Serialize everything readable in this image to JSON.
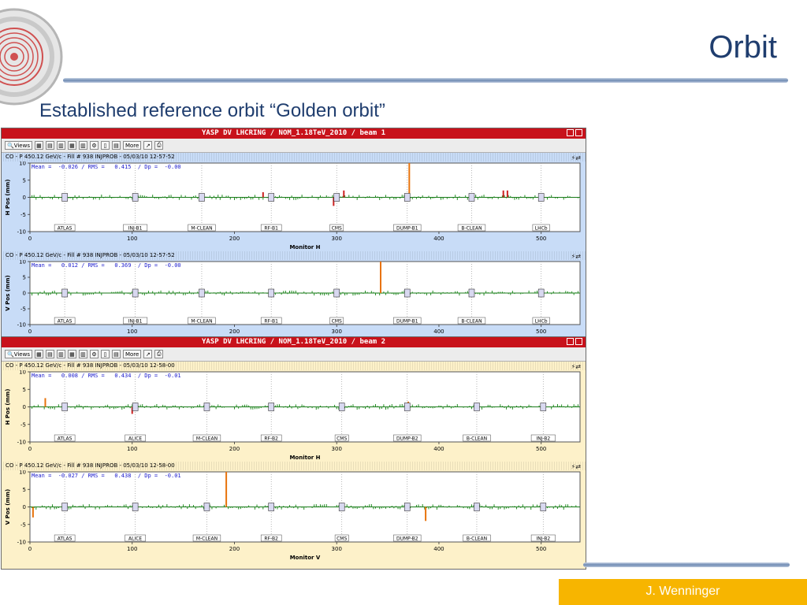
{
  "slide": {
    "title": "Orbit",
    "subtitle": "Established  reference orbit “Golden orbit”",
    "author": "J. Wenninger",
    "colors": {
      "title": "#1f3d6e",
      "footer": "#f7b500"
    }
  },
  "toolbar": {
    "views_label": "Views",
    "more_label": "More"
  },
  "windows": [
    {
      "title": "YASP DV LHCRING / NOM_1.18TeV_2010 / beam 1",
      "background": "#c8dcf7",
      "plot_bg": "#ffffff",
      "panels": [
        {
          "header": "CO - P 450.12 GeV/c - Fill # 938 INJPROB - 05/03/10 12-57-52",
          "stats": "Mean =  -0.026 / RMS =   0.415  / Dp =  -0.00",
          "chart_data": {
            "type": "bar",
            "ylabel": "H Pos (mm)",
            "xlabel": "Monitor H",
            "xlim": [
              0,
              538
            ],
            "ylim": [
              -10,
              10
            ],
            "x_ticks": [
              "0",
              "100",
              "200",
              "300",
              "400",
              "500"
            ],
            "y_ticks": [
              "10",
              "5",
              "0",
              "-5",
              "-10"
            ],
            "markers": [
              {
                "label": "ATLAS",
                "x": 34
              },
              {
                "label": "INJ-B1",
                "x": 103
              },
              {
                "label": "M-CLEAN",
                "x": 168
              },
              {
                "label": "RF-B1",
                "x": 236
              },
              {
                "label": "CMS",
                "x": 300
              },
              {
                "label": "DUMP-B1",
                "x": 369
              },
              {
                "label": "B-CLEAN",
                "x": 432
              },
              {
                "label": "LHCb",
                "x": 500
              }
            ],
            "highlights": [
              {
                "x": 297,
                "v": -2.5,
                "color": "#cc2222"
              },
              {
                "x": 307,
                "v": 2,
                "color": "#cc2222"
              },
              {
                "x": 371,
                "v": 10,
                "color": "#e8730c"
              },
              {
                "x": 228,
                "v": 1.5,
                "color": "#cc2222"
              },
              {
                "x": 463,
                "v": 2,
                "color": "#cc2222"
              },
              {
                "x": 467,
                "v": 2,
                "color": "#cc2222"
              }
            ]
          }
        },
        {
          "header": "CO - P 450.12 GeV/c - Fill # 938 INJPROB - 05/03/10 12-57-52",
          "stats": "Mean =   0.012 / RMS =   0.369  / Dp =  -0.00",
          "chart_data": {
            "type": "bar",
            "ylabel": "V Pos (mm)",
            "xlabel": "",
            "xlim": [
              0,
              538
            ],
            "ylim": [
              -10,
              10
            ],
            "x_ticks": [
              "0",
              "100",
              "200",
              "300",
              "400",
              "500"
            ],
            "y_ticks": [
              "10",
              "5",
              "0",
              "-5",
              "-10"
            ],
            "markers": [
              {
                "label": "ATLAS",
                "x": 34
              },
              {
                "label": "INJ-B1",
                "x": 103
              },
              {
                "label": "M-CLEAN",
                "x": 168
              },
              {
                "label": "RF-B1",
                "x": 236
              },
              {
                "label": "CMS",
                "x": 300
              },
              {
                "label": "DUMP-B1",
                "x": 369
              },
              {
                "label": "B-CLEAN",
                "x": 432
              },
              {
                "label": "LHCb",
                "x": 500
              }
            ],
            "highlights": [
              {
                "x": 343,
                "v": 10,
                "color": "#e8730c"
              }
            ]
          }
        }
      ]
    },
    {
      "title": "YASP DV LHCRING / NOM_1.18TeV_2010 / beam 2",
      "background": "#fdf1c9",
      "plot_bg": "#ffffff",
      "panels": [
        {
          "header": "CO - P 450.12 GeV/c - Fill # 938 INJPROB - 05/03/10 12-58-00",
          "stats": "Mean =   0.008 / RMS =   0.434  / Dp =  -0.01",
          "chart_data": {
            "type": "bar",
            "ylabel": "H Pos (mm)",
            "xlabel": "Monitor H",
            "xlim": [
              0,
              538
            ],
            "ylim": [
              -10,
              10
            ],
            "x_ticks": [
              "0",
              "100",
              "200",
              "300",
              "400",
              "500"
            ],
            "y_ticks": [
              "10",
              "5",
              "0",
              "-5",
              "-10"
            ],
            "markers": [
              {
                "label": "ATLAS",
                "x": 34
              },
              {
                "label": "ALICE",
                "x": 103
              },
              {
                "label": "M-CLEAN",
                "x": 173
              },
              {
                "label": "RF-B2",
                "x": 236
              },
              {
                "label": "CMS",
                "x": 305
              },
              {
                "label": "DUMP-B2",
                "x": 369
              },
              {
                "label": "B-CLEAN",
                "x": 437
              },
              {
                "label": "INJ-B2",
                "x": 502
              }
            ],
            "highlights": [
              {
                "x": 15,
                "v": 2.5,
                "color": "#e8730c"
              },
              {
                "x": 100,
                "v": -2,
                "color": "#cc2222"
              },
              {
                "x": 370,
                "v": 1.5,
                "color": "#e8730c"
              }
            ]
          }
        },
        {
          "header": "CO - P 450.12 GeV/c - Fill # 938 INJPROB - 05/03/10 12-58-00",
          "stats": "Mean =  -0.027 / RMS =   0.438  / Dp =  -0.01",
          "chart_data": {
            "type": "bar",
            "ylabel": "V Pos (mm)",
            "xlabel": "Monitor V",
            "xlim": [
              0,
              538
            ],
            "ylim": [
              -10,
              10
            ],
            "x_ticks": [
              "0",
              "100",
              "200",
              "300",
              "400",
              "500"
            ],
            "y_ticks": [
              "10",
              "5",
              "0",
              "-5",
              "-10"
            ],
            "markers": [
              {
                "label": "ATLAS",
                "x": 34
              },
              {
                "label": "ALICE",
                "x": 103
              },
              {
                "label": "M-CLEAN",
                "x": 173
              },
              {
                "label": "RF-B2",
                "x": 236
              },
              {
                "label": "CMS",
                "x": 305
              },
              {
                "label": "DUMP-B2",
                "x": 369
              },
              {
                "label": "B-CLEAN",
                "x": 437
              },
              {
                "label": "INJ-B2",
                "x": 502
              }
            ],
            "highlights": [
              {
                "x": 3,
                "v": -3,
                "color": "#e8730c"
              },
              {
                "x": 192,
                "v": 10,
                "color": "#e8730c"
              },
              {
                "x": 387,
                "v": -4,
                "color": "#e8730c"
              }
            ]
          }
        }
      ]
    }
  ]
}
